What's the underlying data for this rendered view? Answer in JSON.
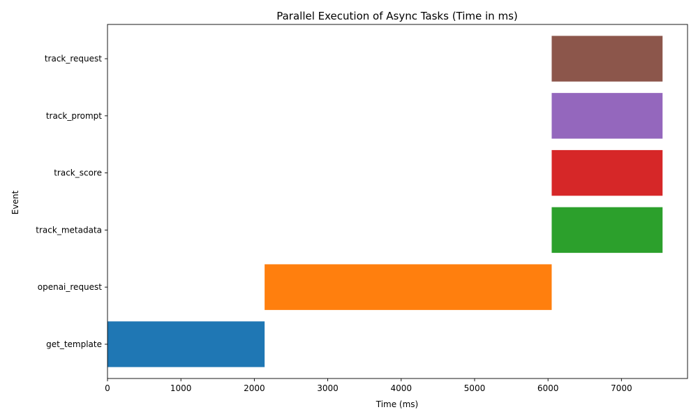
{
  "chart_data": {
    "type": "bar",
    "orientation": "horizontal",
    "title": "Parallel Execution of Async Tasks (Time in ms)",
    "xlabel": "Time (ms)",
    "ylabel": "Event",
    "xlim": [
      0,
      7900
    ],
    "xticks": [
      0,
      1000,
      2000,
      3000,
      4000,
      5000,
      6000,
      7000
    ],
    "grid": false,
    "categories": [
      "get_template",
      "openai_request",
      "track_metadata",
      "track_score",
      "track_prompt",
      "track_request"
    ],
    "bars": [
      {
        "event": "get_template",
        "start": 0,
        "end": 2140,
        "color": "#1f77b4"
      },
      {
        "event": "openai_request",
        "start": 2140,
        "end": 6050,
        "color": "#ff7f0e"
      },
      {
        "event": "track_metadata",
        "start": 6050,
        "end": 7560,
        "color": "#2ca02c"
      },
      {
        "event": "track_score",
        "start": 6050,
        "end": 7560,
        "color": "#d62728"
      },
      {
        "event": "track_prompt",
        "start": 6050,
        "end": 7560,
        "color": "#9467bd"
      },
      {
        "event": "track_request",
        "start": 6050,
        "end": 7560,
        "color": "#8c564b"
      }
    ]
  }
}
